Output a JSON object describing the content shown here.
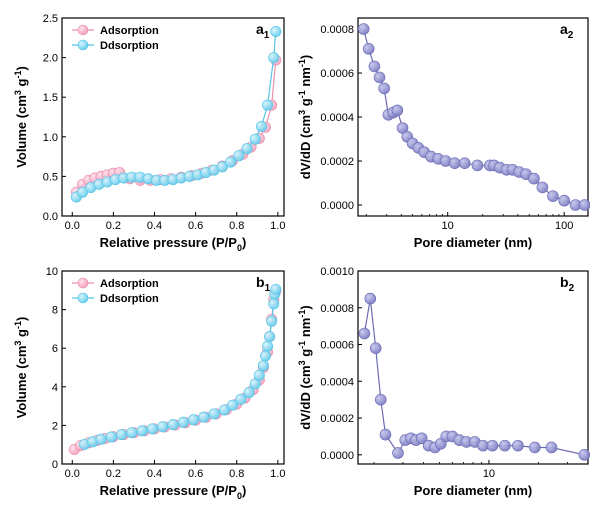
{
  "colors": {
    "adsorption": "#f4b3c9",
    "adsorption_line": "#e98fae",
    "desorption": "#8fdcf2",
    "desorption_line": "#55c4e6",
    "pore": "#8f8fcf",
    "pore_line": "#6c6cb4"
  },
  "chart_data": [
    {
      "id": "a1",
      "type": "line",
      "panel_label": "a",
      "panel_sub": "1",
      "xlabel": "Relative pressure (P/P",
      "xlabel_sub": "0",
      "xlabel_end": ")",
      "ylabel": "Volume (cm",
      "ylabel_sup1": "3",
      "ylabel_mid": " g",
      "ylabel_sup2": "-1",
      "ylabel_end": ")",
      "xlim": [
        -0.05,
        1.03
      ],
      "ylim": [
        0,
        2.5
      ],
      "xticks": [
        "0.0",
        "0.2",
        "0.4",
        "0.6",
        "0.8",
        "1.0"
      ],
      "xtick_values": [
        0,
        0.2,
        0.4,
        0.6,
        0.8,
        1.0
      ],
      "yticks": [
        "0.0",
        "0.5",
        "1.0",
        "1.5",
        "2.0",
        "2.5"
      ],
      "ytick_values": [
        0,
        0.5,
        1.0,
        1.5,
        2.0,
        2.5
      ],
      "legend": {
        "position": "top-left",
        "items": [
          "Adsorption",
          "Ddsorption"
        ]
      },
      "series": [
        {
          "name": "Adsorption",
          "x": [
            0.02,
            0.05,
            0.08,
            0.11,
            0.14,
            0.17,
            0.2,
            0.23,
            0.28,
            0.33,
            0.38,
            0.43,
            0.48,
            0.53,
            0.58,
            0.63,
            0.68,
            0.73,
            0.78,
            0.83,
            0.87,
            0.91,
            0.94,
            0.97,
            0.99
          ],
          "y": [
            0.3,
            0.4,
            0.45,
            0.48,
            0.5,
            0.52,
            0.54,
            0.55,
            0.47,
            0.45,
            0.45,
            0.46,
            0.47,
            0.49,
            0.51,
            0.54,
            0.58,
            0.63,
            0.7,
            0.78,
            0.87,
            0.98,
            1.12,
            1.4,
            1.97
          ]
        },
        {
          "name": "Ddsorption",
          "x": [
            0.02,
            0.05,
            0.09,
            0.13,
            0.17,
            0.21,
            0.25,
            0.29,
            0.33,
            0.37,
            0.41,
            0.45,
            0.49,
            0.53,
            0.57,
            0.61,
            0.65,
            0.69,
            0.73,
            0.77,
            0.81,
            0.85,
            0.89,
            0.92,
            0.95,
            0.98,
            0.99
          ],
          "y": [
            0.24,
            0.3,
            0.36,
            0.4,
            0.43,
            0.46,
            0.48,
            0.49,
            0.49,
            0.47,
            0.45,
            0.45,
            0.46,
            0.48,
            0.5,
            0.52,
            0.55,
            0.58,
            0.62,
            0.68,
            0.76,
            0.85,
            0.97,
            1.13,
            1.4,
            2.0,
            2.33
          ]
        }
      ]
    },
    {
      "id": "a2",
      "type": "scatter",
      "panel_label": "a",
      "panel_sub": "2",
      "xlabel": "Pore diameter (nm)",
      "ylabel": "dV/dD (cm",
      "ylabel_sup1": "3",
      "ylabel_mid": " g",
      "ylabel_sup2": "-1",
      "ylabel_mid2": " nm",
      "ylabel_sup3": "-1",
      "ylabel_end": ")",
      "xscale": "log",
      "xlim": [
        1.7,
        160
      ],
      "ylim": [
        -5e-05,
        0.00085
      ],
      "xticks": [
        "10",
        "100"
      ],
      "xtick_values": [
        10,
        100
      ],
      "yticks": [
        "0.0000",
        "0.0002",
        "0.0004",
        "0.0006",
        "0.0008"
      ],
      "ytick_values": [
        0,
        0.0002,
        0.0004,
        0.0006,
        0.0008
      ],
      "series": [
        {
          "x": [
            1.9,
            2.1,
            2.35,
            2.6,
            2.85,
            3.1,
            3.4,
            3.7,
            4.1,
            4.5,
            5.0,
            5.6,
            6.3,
            7.2,
            8.3,
            9.6,
            11.5,
            14,
            18,
            23,
            25,
            28,
            32,
            36,
            41,
            47,
            55,
            65,
            80,
            100,
            125,
            150
          ],
          "y": [
            0.0008,
            0.00071,
            0.00063,
            0.00058,
            0.00053,
            0.00041,
            0.00042,
            0.00043,
            0.00035,
            0.00031,
            0.00028,
            0.00026,
            0.00024,
            0.00022,
            0.00021,
            0.0002,
            0.00019,
            0.00019,
            0.00018,
            0.00018,
            0.00018,
            0.00017,
            0.00016,
            0.00016,
            0.00015,
            0.00014,
            0.00012,
            8e-05,
            4e-05,
            2e-05,
            0.0,
            0.0
          ]
        }
      ]
    },
    {
      "id": "b1",
      "type": "line",
      "panel_label": "b",
      "panel_sub": "1",
      "xlabel": "Relative pressure (P/P",
      "xlabel_sub": "0",
      "xlabel_end": ")",
      "ylabel": "Volume (cm",
      "ylabel_sup1": "3",
      "ylabel_mid": " g",
      "ylabel_sup2": "-1",
      "ylabel_end": ")",
      "xlim": [
        -0.05,
        1.03
      ],
      "ylim": [
        0,
        10
      ],
      "xticks": [
        "0.0",
        "0.2",
        "0.4",
        "0.6",
        "0.8",
        "1.0"
      ],
      "xtick_values": [
        0,
        0.2,
        0.4,
        0.6,
        0.8,
        1.0
      ],
      "yticks": [
        "0",
        "2",
        "4",
        "6",
        "8",
        "10"
      ],
      "ytick_values": [
        0,
        2,
        4,
        6,
        8,
        10
      ],
      "legend": {
        "position": "top-left",
        "items": [
          "Adsorption",
          "Ddsorption"
        ]
      },
      "series": [
        {
          "name": "Adsorption",
          "x": [
            0.01,
            0.04,
            0.08,
            0.12,
            0.16,
            0.2,
            0.25,
            0.3,
            0.35,
            0.4,
            0.45,
            0.5,
            0.55,
            0.6,
            0.65,
            0.7,
            0.75,
            0.8,
            0.84,
            0.88,
            0.91,
            0.93,
            0.95,
            0.96,
            0.97,
            0.98,
            0.99
          ],
          "y": [
            0.75,
            0.95,
            1.1,
            1.22,
            1.32,
            1.42,
            1.52,
            1.62,
            1.72,
            1.82,
            1.92,
            2.02,
            2.14,
            2.27,
            2.42,
            2.6,
            2.82,
            3.1,
            3.42,
            3.85,
            4.35,
            5.0,
            5.8,
            6.6,
            7.5,
            8.5,
            8.95
          ]
        },
        {
          "name": "Ddsorption",
          "x": [
            0.06,
            0.1,
            0.14,
            0.19,
            0.24,
            0.29,
            0.34,
            0.39,
            0.44,
            0.49,
            0.54,
            0.59,
            0.64,
            0.69,
            0.74,
            0.78,
            0.82,
            0.86,
            0.89,
            0.91,
            0.93,
            0.94,
            0.95,
            0.96,
            0.97,
            0.98,
            0.985,
            0.99
          ],
          "y": [
            1.02,
            1.15,
            1.28,
            1.4,
            1.52,
            1.62,
            1.72,
            1.82,
            1.93,
            2.04,
            2.16,
            2.29,
            2.43,
            2.6,
            2.8,
            3.05,
            3.35,
            3.7,
            4.15,
            4.6,
            5.1,
            5.6,
            6.1,
            6.6,
            7.4,
            8.3,
            8.8,
            9.05
          ]
        }
      ]
    },
    {
      "id": "b2",
      "type": "scatter",
      "panel_label": "b",
      "panel_sub": "2",
      "xlabel": "Pore diameter (nm)",
      "ylabel": "dV/dD (cm",
      "ylabel_sup1": "3",
      "ylabel_mid": " g",
      "ylabel_sup2": "-1",
      "ylabel_mid2": " nm",
      "ylabel_sup3": "-1",
      "ylabel_end": ")",
      "xscale": "log",
      "xlim": [
        1.6,
        40
      ],
      "ylim": [
        -5e-05,
        0.001
      ],
      "xticks": [
        "10"
      ],
      "xtick_values": [
        10
      ],
      "yticks": [
        "0.0000",
        "0.0002",
        "0.0004",
        "0.0006",
        "0.0008",
        "0.0010"
      ],
      "ytick_values": [
        0,
        0.0002,
        0.0004,
        0.0006,
        0.0008,
        0.001
      ],
      "series": [
        {
          "x": [
            1.75,
            1.9,
            2.05,
            2.2,
            2.35,
            2.8,
            3.1,
            3.35,
            3.6,
            3.9,
            4.3,
            4.7,
            5.1,
            5.5,
            6.0,
            6.6,
            7.3,
            8.2,
            9.2,
            10.5,
            12.5,
            15,
            19,
            24,
            38
          ],
          "y": [
            0.00066,
            0.00085,
            0.00058,
            0.0003,
            0.00011,
            1e-05,
            8e-05,
            9e-05,
            8e-05,
            9e-05,
            5e-05,
            4e-05,
            6e-05,
            0.0001,
            0.0001,
            8e-05,
            7e-05,
            7e-05,
            5e-05,
            5e-05,
            5e-05,
            5e-05,
            4e-05,
            4e-05,
            0.0
          ]
        }
      ]
    }
  ]
}
